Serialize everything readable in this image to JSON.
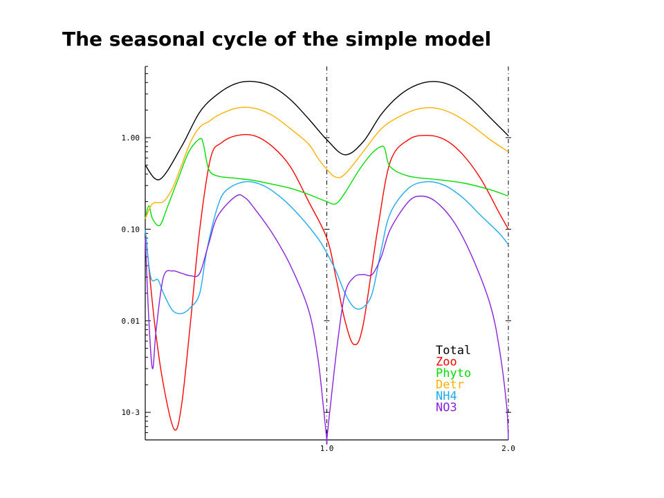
{
  "title": "The seasonal cycle of the simple model",
  "chart_data": {
    "type": "line",
    "title": "The seasonal cycle of the simple model",
    "xlabel": "",
    "ylabel": "",
    "y_scale": "log",
    "xlim": [
      0.0,
      2.0
    ],
    "ylim": [
      0.0005,
      6.0
    ],
    "x_ticks": [
      1.0,
      2.0
    ],
    "x_tick_labels": [
      "1.0",
      "2.0"
    ],
    "y_ticks": [
      1.0,
      0.1,
      0.01,
      0.001
    ],
    "y_tick_labels": [
      "1.00",
      "0.10",
      "0.01",
      "10-3"
    ],
    "vertical_dashed_lines": [
      1.0,
      2.0
    ],
    "legend_position": "bottom-right",
    "series": [
      {
        "name": "Total",
        "color": "#000000",
        "points": [
          [
            0,
            0.5
          ],
          [
            0.08,
            0.35
          ],
          [
            0.2,
            0.8
          ],
          [
            0.3,
            1.9
          ],
          [
            0.4,
            3.0
          ],
          [
            0.5,
            3.9
          ],
          [
            0.6,
            4.1
          ],
          [
            0.7,
            3.6
          ],
          [
            0.8,
            2.6
          ],
          [
            0.9,
            1.6
          ],
          [
            1.0,
            0.95
          ],
          [
            1.1,
            0.65
          ],
          [
            1.2,
            0.9
          ],
          [
            1.3,
            1.8
          ],
          [
            1.4,
            2.9
          ],
          [
            1.5,
            3.8
          ],
          [
            1.6,
            4.1
          ],
          [
            1.7,
            3.6
          ],
          [
            1.8,
            2.6
          ],
          [
            1.9,
            1.65
          ],
          [
            2.0,
            1.05
          ]
        ]
      },
      {
        "name": "Zoo",
        "color": "#ff0000",
        "points": [
          [
            0,
            0.1
          ],
          [
            0.05,
            0.01
          ],
          [
            0.1,
            0.002
          ],
          [
            0.16,
            0.00065
          ],
          [
            0.2,
            0.0012
          ],
          [
            0.25,
            0.01
          ],
          [
            0.3,
            0.1
          ],
          [
            0.36,
            0.6
          ],
          [
            0.42,
            0.88
          ],
          [
            0.5,
            1.05
          ],
          [
            0.6,
            1.05
          ],
          [
            0.7,
            0.8
          ],
          [
            0.8,
            0.48
          ],
          [
            0.9,
            0.2
          ],
          [
            1.0,
            0.08
          ],
          [
            1.05,
            0.03
          ],
          [
            1.1,
            0.01
          ],
          [
            1.15,
            0.0055
          ],
          [
            1.2,
            0.009
          ],
          [
            1.28,
            0.1
          ],
          [
            1.35,
            0.55
          ],
          [
            1.45,
            0.95
          ],
          [
            1.55,
            1.06
          ],
          [
            1.65,
            0.95
          ],
          [
            1.75,
            0.65
          ],
          [
            1.85,
            0.35
          ],
          [
            1.95,
            0.15
          ],
          [
            2.0,
            0.1
          ]
        ]
      },
      {
        "name": "Phyto",
        "color": "#00dd00",
        "points": [
          [
            0,
            0.13
          ],
          [
            0.02,
            0.18
          ],
          [
            0.04,
            0.13
          ],
          [
            0.08,
            0.11
          ],
          [
            0.12,
            0.17
          ],
          [
            0.18,
            0.35
          ],
          [
            0.24,
            0.7
          ],
          [
            0.3,
            0.97
          ],
          [
            0.32,
            0.85
          ],
          [
            0.35,
            0.45
          ],
          [
            0.4,
            0.38
          ],
          [
            0.5,
            0.36
          ],
          [
            0.6,
            0.34
          ],
          [
            0.7,
            0.31
          ],
          [
            0.8,
            0.28
          ],
          [
            0.9,
            0.24
          ],
          [
            1.0,
            0.2
          ],
          [
            1.05,
            0.19
          ],
          [
            1.1,
            0.25
          ],
          [
            1.18,
            0.45
          ],
          [
            1.25,
            0.68
          ],
          [
            1.3,
            0.8
          ],
          [
            1.32,
            0.75
          ],
          [
            1.35,
            0.48
          ],
          [
            1.45,
            0.38
          ],
          [
            1.6,
            0.35
          ],
          [
            1.75,
            0.32
          ],
          [
            1.9,
            0.27
          ],
          [
            2.0,
            0.23
          ]
        ]
      },
      {
        "name": "Detr",
        "color": "#ffb000",
        "points": [
          [
            0,
            0.13
          ],
          [
            0.04,
            0.19
          ],
          [
            0.1,
            0.2
          ],
          [
            0.15,
            0.28
          ],
          [
            0.2,
            0.5
          ],
          [
            0.25,
            0.9
          ],
          [
            0.3,
            1.3
          ],
          [
            0.35,
            1.5
          ],
          [
            0.4,
            1.75
          ],
          [
            0.5,
            2.1
          ],
          [
            0.6,
            2.1
          ],
          [
            0.7,
            1.75
          ],
          [
            0.8,
            1.25
          ],
          [
            0.9,
            0.85
          ],
          [
            0.95,
            0.6
          ],
          [
            1.0,
            0.45
          ],
          [
            1.05,
            0.37
          ],
          [
            1.1,
            0.4
          ],
          [
            1.2,
            0.7
          ],
          [
            1.3,
            1.25
          ],
          [
            1.4,
            1.7
          ],
          [
            1.5,
            2.05
          ],
          [
            1.6,
            2.1
          ],
          [
            1.7,
            1.8
          ],
          [
            1.8,
            1.35
          ],
          [
            1.9,
            0.95
          ],
          [
            2.0,
            0.7
          ]
        ]
      },
      {
        "name": "NH4",
        "color": "#1eaaee",
        "points": [
          [
            0,
            0.1
          ],
          [
            0.03,
            0.03
          ],
          [
            0.07,
            0.028
          ],
          [
            0.1,
            0.02
          ],
          [
            0.15,
            0.013
          ],
          [
            0.2,
            0.012
          ],
          [
            0.25,
            0.014
          ],
          [
            0.3,
            0.02
          ],
          [
            0.34,
            0.06
          ],
          [
            0.4,
            0.18
          ],
          [
            0.45,
            0.27
          ],
          [
            0.55,
            0.33
          ],
          [
            0.65,
            0.3
          ],
          [
            0.75,
            0.22
          ],
          [
            0.85,
            0.14
          ],
          [
            0.95,
            0.08
          ],
          [
            1.0,
            0.055
          ],
          [
            1.05,
            0.035
          ],
          [
            1.1,
            0.02
          ],
          [
            1.15,
            0.014
          ],
          [
            1.2,
            0.014
          ],
          [
            1.25,
            0.02
          ],
          [
            1.3,
            0.06
          ],
          [
            1.35,
            0.15
          ],
          [
            1.45,
            0.28
          ],
          [
            1.55,
            0.33
          ],
          [
            1.65,
            0.3
          ],
          [
            1.75,
            0.22
          ],
          [
            1.85,
            0.14
          ],
          [
            1.95,
            0.09
          ],
          [
            2.0,
            0.068
          ]
        ]
      },
      {
        "name": "NO3",
        "color": "#8822dd",
        "points": [
          [
            0,
            0.08
          ],
          [
            0.02,
            0.01
          ],
          [
            0.04,
            0.003
          ],
          [
            0.06,
            0.008
          ],
          [
            0.1,
            0.03
          ],
          [
            0.15,
            0.035
          ],
          [
            0.2,
            0.033
          ],
          [
            0.25,
            0.031
          ],
          [
            0.3,
            0.033
          ],
          [
            0.35,
            0.07
          ],
          [
            0.4,
            0.14
          ],
          [
            0.5,
            0.23
          ],
          [
            0.55,
            0.22
          ],
          [
            0.6,
            0.17
          ],
          [
            0.7,
            0.09
          ],
          [
            0.8,
            0.04
          ],
          [
            0.9,
            0.013
          ],
          [
            0.95,
            0.004
          ],
          [
            0.98,
            0.0012
          ],
          [
            1.0,
            0.0004
          ],
          [
            1.0,
            0.0004
          ],
          [
            1.02,
            0.0012
          ],
          [
            1.06,
            0.006
          ],
          [
            1.1,
            0.02
          ],
          [
            1.15,
            0.03
          ],
          [
            1.2,
            0.032
          ],
          [
            1.25,
            0.032
          ],
          [
            1.3,
            0.05
          ],
          [
            1.35,
            0.1
          ],
          [
            1.45,
            0.2
          ],
          [
            1.52,
            0.23
          ],
          [
            1.6,
            0.2
          ],
          [
            1.7,
            0.12
          ],
          [
            1.8,
            0.05
          ],
          [
            1.9,
            0.015
          ],
          [
            1.95,
            0.005
          ],
          [
            1.99,
            0.0012
          ],
          [
            2.0,
            0.0004
          ]
        ]
      }
    ]
  }
}
